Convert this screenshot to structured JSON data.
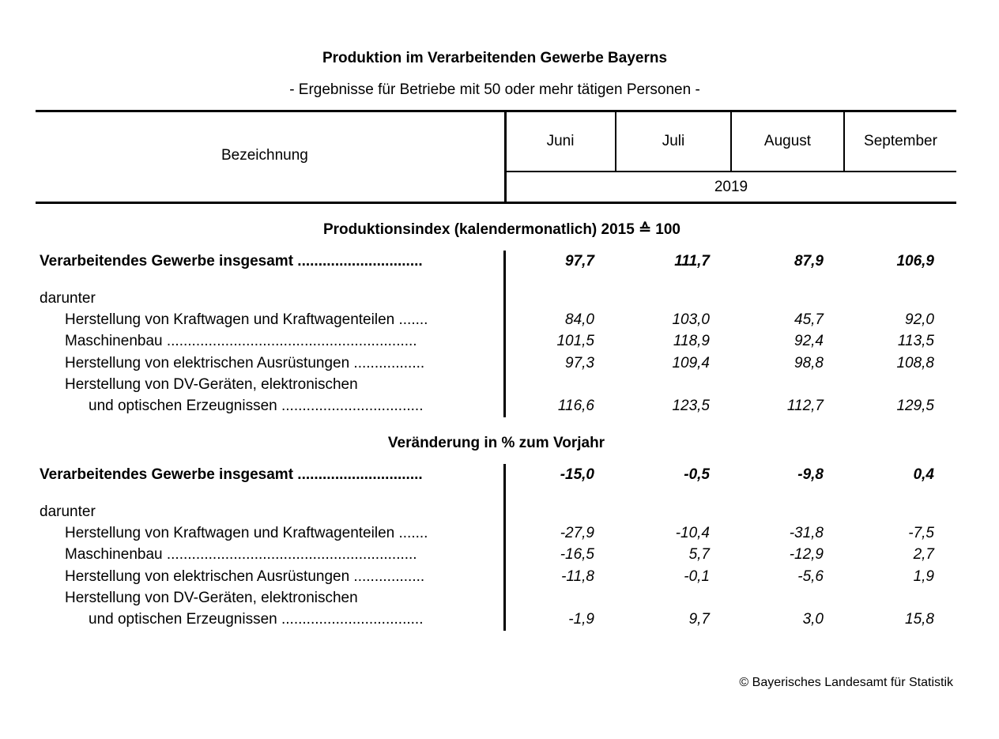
{
  "title": "Produktion im Verarbeitenden Gewerbe Bayerns",
  "subtitle": "- Ergebnisse für Betriebe mit 50 oder mehr tätigen Personen -",
  "header": {
    "label": "Bezeichnung",
    "months": [
      "Juni",
      "Juli",
      "August",
      "September"
    ],
    "year": "2019"
  },
  "section1": {
    "title": "Produktionsindex (kalendermonatlich) 2015 ≙ 100",
    "total": {
      "label": "Verarbeitendes Gewerbe insgesamt ..............................",
      "values": [
        "97,7",
        "111,7",
        "87,9",
        "106,9"
      ]
    },
    "darunter": "darunter",
    "rows": [
      {
        "label": "Herstellung von Kraftwagen und Kraftwagenteilen .......",
        "values": [
          "84,0",
          "103,0",
          "45,7",
          "92,0"
        ]
      },
      {
        "label": "Maschinenbau ............................................................",
        "values": [
          "101,5",
          "118,9",
          "92,4",
          "113,5"
        ]
      },
      {
        "label": "Herstellung von elektrischen Ausrüstungen .................",
        "values": [
          "97,3",
          "109,4",
          "98,8",
          "108,8"
        ]
      }
    ],
    "dv_line1": "Herstellung von DV-Geräten, elektronischen",
    "dv_line2": "und optischen Erzeugnissen ..................................",
    "dv_values": [
      "116,6",
      "123,5",
      "112,7",
      "129,5"
    ]
  },
  "section2": {
    "title": "Veränderung in % zum Vorjahr",
    "total": {
      "label": "Verarbeitendes Gewerbe insgesamt ..............................",
      "values": [
        "-15,0",
        "-0,5",
        "-9,8",
        "0,4"
      ]
    },
    "darunter": "darunter",
    "rows": [
      {
        "label": "Herstellung von Kraftwagen und Kraftwagenteilen .......",
        "values": [
          "-27,9",
          "-10,4",
          "-31,8",
          "-7,5"
        ]
      },
      {
        "label": "Maschinenbau ............................................................",
        "values": [
          "-16,5",
          "5,7",
          "-12,9",
          "2,7"
        ]
      },
      {
        "label": "Herstellung von elektrischen Ausrüstungen .................",
        "values": [
          "-11,8",
          "-0,1",
          "-5,6",
          "1,9"
        ]
      }
    ],
    "dv_line1": "Herstellung von DV-Geräten, elektronischen",
    "dv_line2": "und optischen Erzeugnissen ..................................",
    "dv_values": [
      "-1,9",
      "9,7",
      "3,0",
      "15,8"
    ]
  },
  "footer": "© Bayerisches Landesamt für Statistik"
}
